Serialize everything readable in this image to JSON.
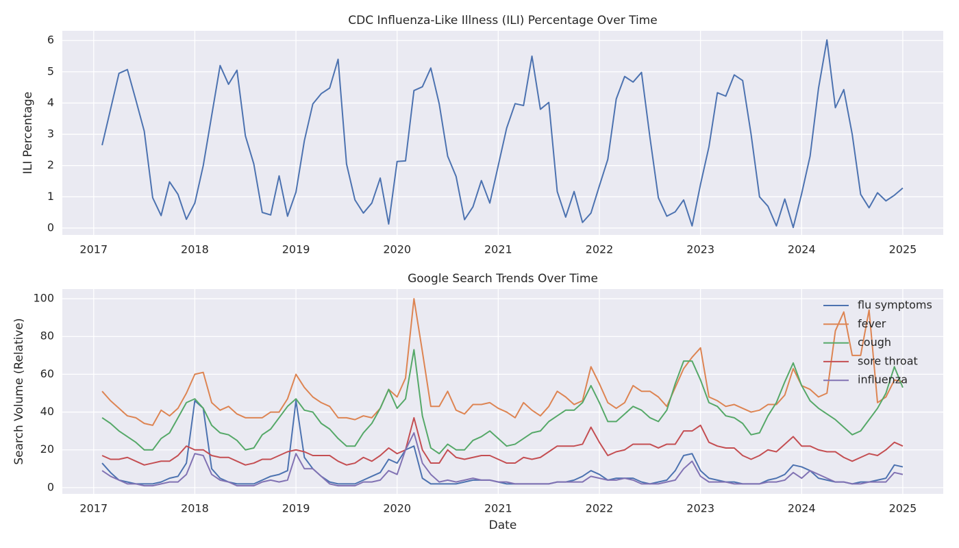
{
  "chart_data": [
    {
      "type": "line",
      "title": "CDC Influenza-Like Illness (ILI) Percentage Over Time",
      "ylabel": "ILI Percentage",
      "color": "#4c72b0",
      "x": [
        "2017-02",
        "2017-03",
        "2017-04",
        "2017-05",
        "2017-06",
        "2017-07",
        "2017-08",
        "2017-09",
        "2017-10",
        "2017-11",
        "2017-12",
        "2018-01",
        "2018-02",
        "2018-03",
        "2018-04",
        "2018-05",
        "2018-06",
        "2018-07",
        "2018-08",
        "2018-09",
        "2018-10",
        "2018-11",
        "2018-12",
        "2019-01",
        "2019-02",
        "2019-03",
        "2019-04",
        "2019-05",
        "2019-06",
        "2019-07",
        "2019-08",
        "2019-09",
        "2019-10",
        "2019-11",
        "2019-12",
        "2020-01",
        "2020-02",
        "2020-03",
        "2020-04",
        "2020-05",
        "2020-06",
        "2020-07",
        "2020-08",
        "2020-09",
        "2020-10",
        "2020-11",
        "2020-12",
        "2021-01",
        "2021-02",
        "2021-03",
        "2021-04",
        "2021-05",
        "2021-06",
        "2021-07",
        "2021-08",
        "2021-09",
        "2021-10",
        "2021-11",
        "2021-12",
        "2022-01",
        "2022-02",
        "2022-03",
        "2022-04",
        "2022-05",
        "2022-06",
        "2022-07",
        "2022-08",
        "2022-09",
        "2022-10",
        "2022-11",
        "2022-12",
        "2023-01",
        "2023-02",
        "2023-03",
        "2023-04",
        "2023-05",
        "2023-06",
        "2023-07",
        "2023-08",
        "2023-09",
        "2023-10",
        "2023-11",
        "2023-12",
        "2024-01",
        "2024-02",
        "2024-03",
        "2024-04",
        "2024-05",
        "2024-06",
        "2024-07",
        "2024-08",
        "2024-09",
        "2024-10",
        "2024-11",
        "2024-12",
        "2025-01"
      ],
      "values": [
        2.65,
        3.8,
        4.95,
        5.07,
        4.1,
        3.1,
        0.97,
        0.4,
        1.48,
        1.08,
        0.28,
        0.8,
        2.0,
        3.6,
        5.2,
        4.6,
        5.05,
        2.95,
        2.05,
        0.5,
        0.42,
        1.67,
        0.38,
        1.15,
        2.8,
        3.97,
        4.3,
        4.48,
        5.4,
        2.05,
        0.9,
        0.48,
        0.8,
        1.6,
        0.13,
        2.13,
        2.15,
        4.4,
        4.52,
        5.12,
        3.97,
        2.3,
        1.65,
        0.27,
        0.68,
        1.52,
        0.8,
        2.0,
        3.2,
        3.98,
        3.92,
        5.5,
        3.8,
        4.02,
        1.17,
        0.35,
        1.17,
        0.18,
        0.48,
        1.35,
        2.2,
        4.13,
        4.85,
        4.67,
        4.98,
        2.9,
        0.97,
        0.38,
        0.52,
        0.9,
        0.07,
        1.4,
        2.6,
        4.33,
        4.22,
        4.9,
        4.72,
        3.0,
        1.0,
        0.7,
        0.07,
        0.93,
        0.02,
        1.1,
        2.3,
        4.47,
        6.02,
        3.85,
        4.43,
        3.0,
        1.08,
        0.65,
        1.13,
        0.87,
        1.05,
        1.28
      ],
      "xlim": [
        2016.69,
        2025.4
      ],
      "xticks": [
        2017,
        2018,
        2019,
        2020,
        2021,
        2022,
        2023,
        2024,
        2025
      ],
      "ylim": [
        -0.22,
        6.31
      ],
      "yticks": [
        0,
        1,
        2,
        3,
        4,
        5,
        6
      ],
      "grid": true
    },
    {
      "type": "line",
      "title": "Google Search Trends Over Time",
      "xlabel": "Date",
      "ylabel": "Search Volume (Relative)",
      "x": [
        "2017-02",
        "2017-03",
        "2017-04",
        "2017-05",
        "2017-06",
        "2017-07",
        "2017-08",
        "2017-09",
        "2017-10",
        "2017-11",
        "2017-12",
        "2018-01",
        "2018-02",
        "2018-03",
        "2018-04",
        "2018-05",
        "2018-06",
        "2018-07",
        "2018-08",
        "2018-09",
        "2018-10",
        "2018-11",
        "2018-12",
        "2019-01",
        "2019-02",
        "2019-03",
        "2019-04",
        "2019-05",
        "2019-06",
        "2019-07",
        "2019-08",
        "2019-09",
        "2019-10",
        "2019-11",
        "2019-12",
        "2020-01",
        "2020-02",
        "2020-03",
        "2020-04",
        "2020-05",
        "2020-06",
        "2020-07",
        "2020-08",
        "2020-09",
        "2020-10",
        "2020-11",
        "2020-12",
        "2021-01",
        "2021-02",
        "2021-03",
        "2021-04",
        "2021-05",
        "2021-06",
        "2021-07",
        "2021-08",
        "2021-09",
        "2021-10",
        "2021-11",
        "2021-12",
        "2022-01",
        "2022-02",
        "2022-03",
        "2022-04",
        "2022-05",
        "2022-06",
        "2022-07",
        "2022-08",
        "2022-09",
        "2022-10",
        "2022-11",
        "2022-12",
        "2023-01",
        "2023-02",
        "2023-03",
        "2023-04",
        "2023-05",
        "2023-06",
        "2023-07",
        "2023-08",
        "2023-09",
        "2023-10",
        "2023-11",
        "2023-12",
        "2024-01",
        "2024-02",
        "2024-03",
        "2024-04",
        "2024-05",
        "2024-06",
        "2024-07",
        "2024-08",
        "2024-09",
        "2024-10",
        "2024-11",
        "2024-12",
        "2025-01"
      ],
      "series": [
        {
          "name": "flu symptoms",
          "color": "#4c72b0",
          "values": [
            13,
            8,
            4,
            3,
            2,
            2,
            2,
            3,
            5,
            6,
            13,
            46,
            42,
            10,
            5,
            3,
            2,
            2,
            2,
            4,
            6,
            7,
            9,
            46,
            16,
            10,
            6,
            3,
            2,
            2,
            2,
            4,
            6,
            8,
            15,
            13,
            20,
            22,
            5,
            2,
            2,
            2,
            2,
            3,
            4,
            4,
            4,
            3,
            2,
            2,
            2,
            2,
            2,
            2,
            3,
            3,
            4,
            6,
            9,
            7,
            4,
            5,
            5,
            5,
            3,
            2,
            3,
            4,
            9,
            17,
            18,
            9,
            5,
            4,
            3,
            3,
            2,
            2,
            2,
            4,
            5,
            7,
            12,
            11,
            9,
            5,
            4,
            3,
            3,
            2,
            3,
            3,
            4,
            5,
            12,
            11
          ]
        },
        {
          "name": "fever",
          "color": "#dd8452",
          "values": [
            51,
            46,
            42,
            38,
            37,
            34,
            33,
            41,
            38,
            42,
            50,
            60,
            61,
            45,
            41,
            43,
            39,
            37,
            37,
            37,
            40,
            40,
            47,
            60,
            53,
            48,
            45,
            43,
            37,
            37,
            36,
            38,
            37,
            42,
            52,
            48,
            58,
            100,
            72,
            43,
            43,
            51,
            41,
            39,
            44,
            44,
            45,
            42,
            40,
            37,
            45,
            41,
            38,
            43,
            51,
            48,
            44,
            46,
            64,
            55,
            45,
            42,
            45,
            54,
            51,
            51,
            48,
            43,
            53,
            63,
            69,
            74,
            48,
            46,
            43,
            44,
            42,
            40,
            41,
            44,
            44,
            49,
            63,
            54,
            52,
            48,
            50,
            83,
            93,
            70,
            70,
            94,
            45,
            48,
            57,
            56
          ]
        },
        {
          "name": "cough",
          "color": "#55a868",
          "values": [
            37,
            34,
            30,
            27,
            24,
            20,
            20,
            26,
            29,
            37,
            45,
            47,
            42,
            33,
            29,
            28,
            25,
            20,
            21,
            28,
            31,
            37,
            43,
            47,
            41,
            40,
            34,
            31,
            26,
            22,
            22,
            29,
            34,
            42,
            52,
            42,
            47,
            73,
            38,
            21,
            18,
            23,
            20,
            20,
            25,
            27,
            30,
            26,
            22,
            23,
            26,
            29,
            30,
            35,
            38,
            41,
            41,
            45,
            54,
            45,
            35,
            35,
            39,
            43,
            41,
            37,
            35,
            41,
            55,
            67,
            67,
            57,
            45,
            43,
            38,
            37,
            34,
            28,
            29,
            38,
            45,
            56,
            66,
            54,
            46,
            42,
            39,
            36,
            32,
            28,
            30,
            36,
            42,
            50,
            64,
            53
          ]
        },
        {
          "name": "sore throat",
          "color": "#c44e52",
          "values": [
            17,
            15,
            15,
            16,
            14,
            12,
            13,
            14,
            14,
            17,
            22,
            20,
            20,
            17,
            16,
            16,
            14,
            12,
            13,
            15,
            15,
            17,
            19,
            20,
            19,
            17,
            17,
            17,
            14,
            12,
            13,
            16,
            14,
            17,
            21,
            18,
            20,
            37,
            20,
            13,
            13,
            20,
            16,
            15,
            16,
            17,
            17,
            15,
            13,
            13,
            16,
            15,
            16,
            19,
            22,
            22,
            22,
            23,
            32,
            24,
            17,
            19,
            20,
            23,
            23,
            23,
            21,
            23,
            23,
            30,
            30,
            33,
            24,
            22,
            21,
            21,
            17,
            15,
            17,
            20,
            19,
            23,
            27,
            22,
            22,
            20,
            19,
            19,
            16,
            14,
            16,
            18,
            17,
            20,
            24,
            22
          ]
        },
        {
          "name": "influenza",
          "color": "#8172b3",
          "values": [
            9,
            6,
            4,
            2,
            2,
            1,
            1,
            2,
            3,
            3,
            7,
            18,
            17,
            7,
            4,
            3,
            1,
            1,
            1,
            3,
            4,
            3,
            4,
            18,
            10,
            10,
            6,
            2,
            1,
            1,
            1,
            3,
            3,
            4,
            9,
            7,
            20,
            29,
            13,
            7,
            3,
            4,
            3,
            4,
            5,
            4,
            4,
            3,
            3,
            2,
            2,
            2,
            2,
            2,
            3,
            3,
            3,
            3,
            6,
            5,
            4,
            4,
            5,
            4,
            2,
            2,
            2,
            3,
            4,
            10,
            14,
            6,
            3,
            3,
            3,
            2,
            2,
            2,
            2,
            3,
            3,
            4,
            8,
            5,
            9,
            7,
            5,
            3,
            3,
            2,
            2,
            3,
            3,
            3,
            8,
            7
          ]
        }
      ],
      "xlim": [
        2016.69,
        2025.4
      ],
      "xticks": [
        2017,
        2018,
        2019,
        2020,
        2021,
        2022,
        2023,
        2024,
        2025
      ],
      "ylim": [
        -3.3,
        105.1
      ],
      "yticks": [
        0,
        20,
        40,
        60,
        80,
        100
      ],
      "grid": true,
      "legend": "upper right"
    }
  ]
}
